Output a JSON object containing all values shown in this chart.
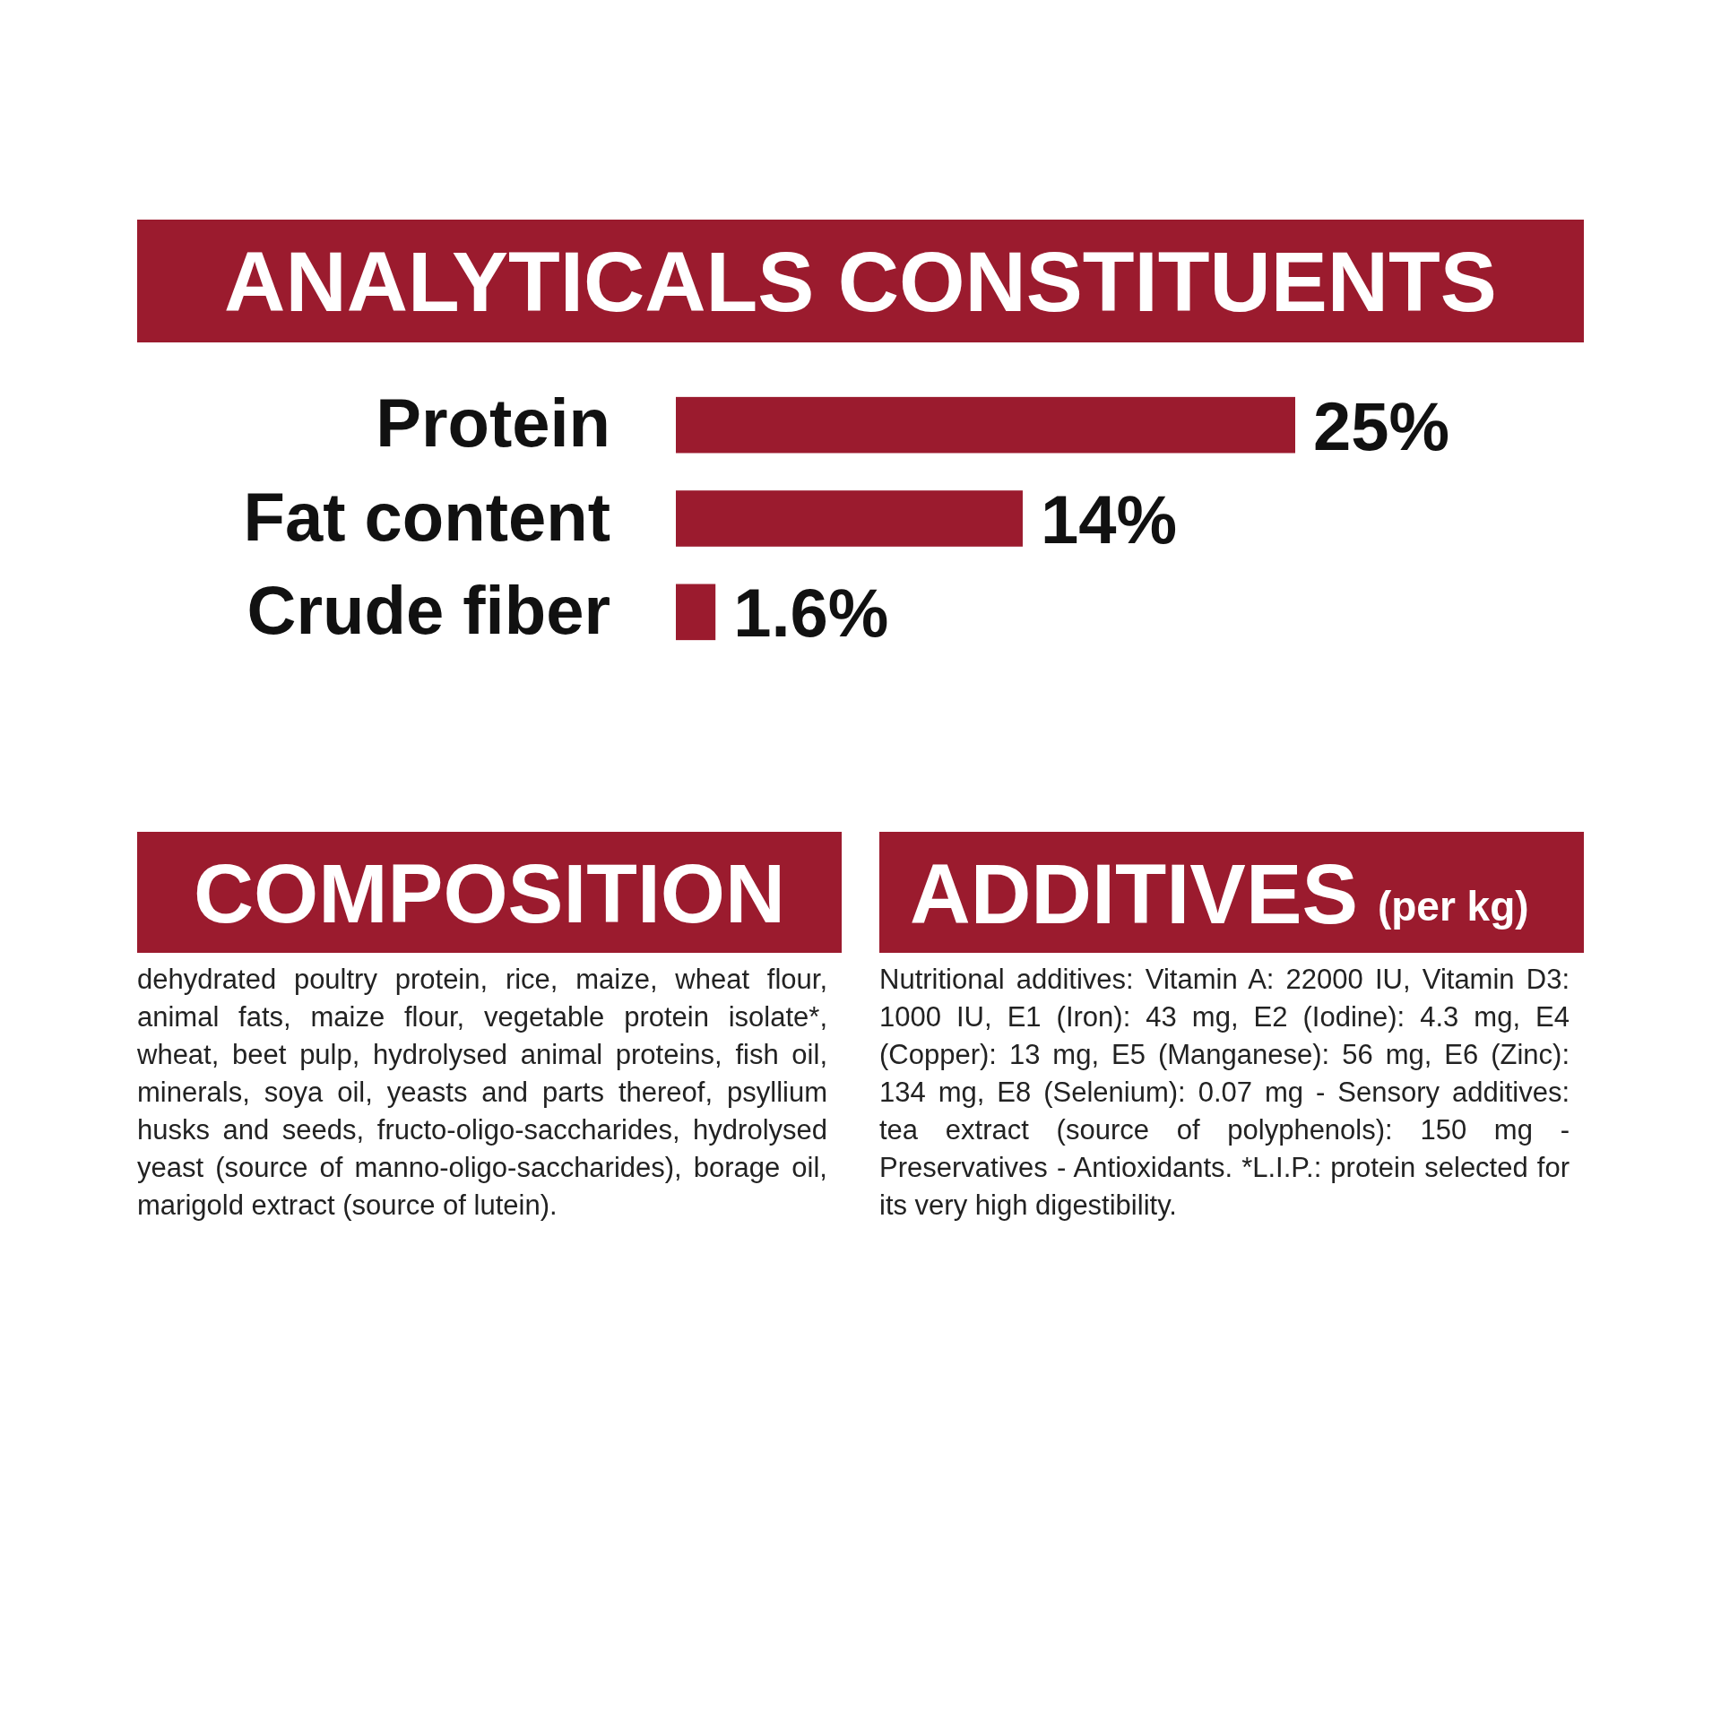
{
  "chart_data": {
    "type": "bar",
    "orientation": "horizontal",
    "title": "ANALYTICALS CONSTITUENTS",
    "categories": [
      "Protein",
      "Fat content",
      "Crude fiber"
    ],
    "values": [
      25,
      14,
      1.6
    ],
    "value_labels": [
      "25%",
      "14%",
      "1.6%"
    ],
    "color": "#9b1b2e",
    "xlim": [
      0,
      25
    ],
    "tick_labels": "y",
    "annotations": [
      "COMPOSITION",
      "dehydrated poultry protein, rice, maize, wheat flour, animal fats, maize flour, vegetable protein isolate*, wheat, beet pulp, hydrolysed animal proteins, fish oil, minerals, soya oil, yeasts and parts thereof, psyllium husks and seeds, fructo-oligo-saccharides, hydrolysed yeast (source of manno-oligo-saccharides), borage oil, marigold extract (source of lutein).",
      "ADDITIVES",
      "(per kg)",
      "Nutritional additives: Vitamin A: 22000 IU, Vitamin D3: 1000 IU, E1 (Iron): 43 mg, E2 (Iodine): 4.3 mg, E4 (Copper): 13 mg, E5 (Manganese): 56 mg, E6 (Zinc): 134 mg, E8 (Selenium): 0.07 mg - Sensory additives: tea extract (source of polyphenols): 150 mg - Preservatives - Antioxidants. *L.I.P.: protein selected for its very high digestibility."
    ]
  }
}
